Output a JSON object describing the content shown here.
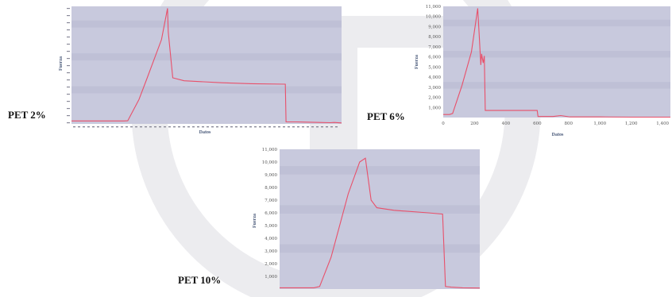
{
  "labels": {
    "pet2": "PET 2%",
    "pet6": "PET 6%",
    "pet10": "PET 10%"
  },
  "colors": {
    "plot_bg": "#c8c9dd",
    "line": "#e8506a",
    "watermark": "#e9e9ec"
  },
  "chart_data": [
    {
      "id": "pet2",
      "type": "line",
      "title": "",
      "xlabel": "Datos",
      "ylabel": "Fuerza",
      "xlim": [
        0,
        360
      ],
      "ylim": [
        0,
        12000
      ],
      "grid": false,
      "xticks": [],
      "yticks": [],
      "series": [
        {
          "x": [
            0,
            70,
            75,
            90,
            100,
            120,
            128,
            129,
            135,
            150,
            200,
            240,
            285,
            286,
            300,
            330,
            345,
            350,
            360
          ],
          "y": [
            300,
            300,
            320,
            2500,
            4500,
            8600,
            11800,
            9400,
            4700,
            4400,
            4200,
            4100,
            4050,
            200,
            200,
            150,
            120,
            150,
            100
          ]
        }
      ]
    },
    {
      "id": "pet6",
      "type": "line",
      "title": "",
      "xlabel": "Datos",
      "ylabel": "Fuerza",
      "xlim": [
        0,
        1450
      ],
      "ylim": [
        0,
        11000
      ],
      "grid": false,
      "xticks": [
        "0",
        "200",
        "400",
        "600",
        "800",
        "1,000",
        "1,200",
        "1,400"
      ],
      "xtick_values": [
        0,
        200,
        400,
        600,
        800,
        1000,
        1200,
        1400
      ],
      "yticks": [
        "1,000",
        "2,000",
        "3,000",
        "4,000",
        "5,000",
        "6,000",
        "7,000",
        "8,000",
        "9,000",
        "10,000",
        "11,000"
      ],
      "ytick_values": [
        1000,
        2000,
        3000,
        4000,
        5000,
        6000,
        7000,
        8000,
        9000,
        10000,
        11000
      ],
      "series": [
        {
          "x": [
            0,
            40,
            60,
            120,
            180,
            220,
            230,
            240,
            245,
            255,
            262,
            268,
            275,
            600,
            605,
            700,
            750,
            800,
            810,
            1000,
            1200,
            1450
          ],
          "y": [
            300,
            300,
            400,
            3200,
            6500,
            10800,
            8000,
            5200,
            6300,
            5400,
            6100,
            700,
            700,
            700,
            100,
            100,
            200,
            80,
            60,
            60,
            40,
            40
          ]
        }
      ]
    },
    {
      "id": "pet10",
      "type": "line",
      "title": "",
      "xlabel": "",
      "ylabel": "Fuerza",
      "xlim": [
        0,
        350
      ],
      "ylim": [
        0,
        11000
      ],
      "grid": false,
      "xticks": [],
      "yticks": [
        "1,000",
        "2,000",
        "3,000",
        "4,000",
        "5,000",
        "6,000",
        "7,000",
        "8,000",
        "9,000",
        "10,000",
        "11,000"
      ],
      "ytick_values": [
        1000,
        2000,
        3000,
        4000,
        5000,
        6000,
        7000,
        8000,
        9000,
        10000,
        11000
      ],
      "series": [
        {
          "x": [
            0,
            60,
            70,
            90,
            120,
            140,
            150,
            160,
            170,
            200,
            260,
            285,
            290,
            300,
            320,
            350
          ],
          "y": [
            100,
            100,
            200,
            2500,
            7500,
            10000,
            10300,
            7000,
            6400,
            6200,
            6000,
            5900,
            200,
            150,
            100,
            80
          ]
        }
      ]
    }
  ]
}
